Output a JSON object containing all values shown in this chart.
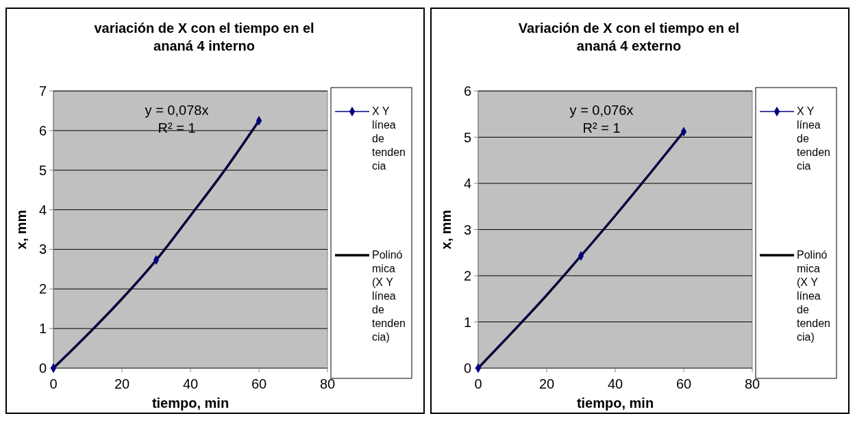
{
  "chart_data": [
    {
      "type": "line",
      "title": "variación de X con el tiempo en el ananá 4 interno",
      "xlabel": "tiempo, min",
      "ylabel": "x, mm",
      "annotations": [
        "y = 0,078x",
        "R² = 1"
      ],
      "xlim": [
        0,
        80
      ],
      "xticks": [
        0,
        20,
        40,
        60,
        80
      ],
      "ylim": [
        0,
        7
      ],
      "yticks": [
        0,
        1,
        2,
        3,
        4,
        5,
        6,
        7
      ],
      "grid": "y",
      "legend": "right",
      "series": [
        {
          "name": "X Y línea de tendencia",
          "color": "#000080",
          "marker": "diamond",
          "x": [
            0,
            30,
            60
          ],
          "values": [
            0,
            2.73,
            6.25
          ]
        },
        {
          "name": "Polinómica (X Y línea de tendencia)",
          "color": "#000000",
          "marker": "none",
          "x": [
            0,
            10,
            20,
            30,
            40,
            50,
            60
          ],
          "values": [
            0,
            0.85,
            1.75,
            2.73,
            3.85,
            5.0,
            6.25
          ]
        }
      ]
    },
    {
      "type": "line",
      "title": "Variación de X con el tiempo en el ananá 4 externo",
      "xlabel": "tiempo, min",
      "ylabel": "x, mm",
      "annotations": [
        "y = 0,076x",
        "R² = 1"
      ],
      "xlim": [
        0,
        80
      ],
      "xticks": [
        0,
        20,
        40,
        60,
        80
      ],
      "ylim": [
        0,
        6
      ],
      "yticks": [
        0,
        1,
        2,
        3,
        4,
        5,
        6
      ],
      "grid": "y",
      "legend": "right",
      "series": [
        {
          "name": "X Y línea de tendencia",
          "color": "#000080",
          "marker": "diamond",
          "x": [
            0,
            30,
            60
          ],
          "values": [
            0,
            2.43,
            5.12
          ]
        },
        {
          "name": "Polinómica (X Y línea de tendencia)",
          "color": "#000000",
          "marker": "none",
          "x": [
            0,
            10,
            20,
            30,
            40,
            50,
            60
          ],
          "values": [
            0,
            0.78,
            1.58,
            2.43,
            3.3,
            4.2,
            5.12
          ]
        }
      ]
    }
  ]
}
